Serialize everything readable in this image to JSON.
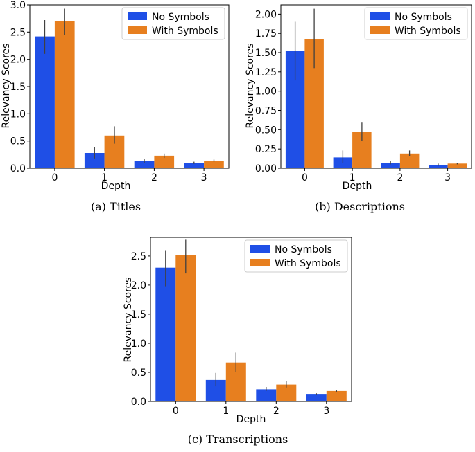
{
  "colors": {
    "no_symbols": "#1f4fe6",
    "with_symbols": "#e77f1f",
    "error": "#404040"
  },
  "chart_data": [
    {
      "type": "bar",
      "caption": "(a) Titles",
      "xlabel": "Depth",
      "ylabel": "Relevancy Scores",
      "categories": [
        "0",
        "1",
        "2",
        "3"
      ],
      "ylim": [
        0,
        3.0
      ],
      "yticks": [
        0.0,
        0.5,
        1.0,
        1.5,
        2.0,
        2.5,
        3.0
      ],
      "ytick_labels": [
        "0.0",
        "0.5",
        "1.0",
        "1.5",
        "2.0",
        "2.5",
        "3.0"
      ],
      "legend_position": "top-right",
      "series": [
        {
          "name": "No Symbols",
          "values": [
            2.42,
            0.28,
            0.13,
            0.1
          ],
          "err_low": [
            2.1,
            0.18,
            0.1,
            0.08
          ],
          "err_high": [
            2.72,
            0.39,
            0.17,
            0.12
          ]
        },
        {
          "name": "With Symbols",
          "values": [
            2.7,
            0.6,
            0.23,
            0.14
          ],
          "err_low": [
            2.45,
            0.45,
            0.19,
            0.12
          ],
          "err_high": [
            2.93,
            0.77,
            0.27,
            0.16
          ]
        }
      ]
    },
    {
      "type": "bar",
      "caption": "(b) Descriptions",
      "xlabel": "Depth",
      "ylabel": "Relevancy Scores",
      "categories": [
        "0",
        "1",
        "2",
        "3"
      ],
      "ylim": [
        0,
        2.12
      ],
      "yticks": [
        0.0,
        0.25,
        0.5,
        0.75,
        1.0,
        1.25,
        1.5,
        1.75,
        2.0
      ],
      "ytick_labels": [
        "0.00",
        "0.25",
        "0.50",
        "0.75",
        "1.00",
        "1.25",
        "1.50",
        "1.75",
        "2.00"
      ],
      "legend_position": "top-right",
      "series": [
        {
          "name": "No Symbols",
          "values": [
            1.52,
            0.14,
            0.07,
            0.045
          ],
          "err_low": [
            1.14,
            0.07,
            0.05,
            0.03
          ],
          "err_high": [
            1.9,
            0.23,
            0.09,
            0.06
          ]
        },
        {
          "name": "With Symbols",
          "values": [
            1.68,
            0.47,
            0.19,
            0.06
          ],
          "err_low": [
            1.3,
            0.35,
            0.16,
            0.05
          ],
          "err_high": [
            2.07,
            0.6,
            0.23,
            0.07
          ]
        }
      ]
    },
    {
      "type": "bar",
      "caption": "(c) Transcriptions",
      "xlabel": "Depth",
      "ylabel": "Relevancy Scores",
      "categories": [
        "0",
        "1",
        "2",
        "3"
      ],
      "ylim": [
        0,
        2.82
      ],
      "yticks": [
        0.0,
        0.5,
        1.0,
        1.5,
        2.0,
        2.5
      ],
      "ytick_labels": [
        "0.0",
        "0.5",
        "1.0",
        "1.5",
        "2.0",
        "2.5"
      ],
      "legend_position": "top-right",
      "series": [
        {
          "name": "No Symbols",
          "values": [
            2.3,
            0.37,
            0.21,
            0.13
          ],
          "err_low": [
            1.98,
            0.26,
            0.18,
            0.12
          ],
          "err_high": [
            2.6,
            0.49,
            0.25,
            0.14
          ]
        },
        {
          "name": "With Symbols",
          "values": [
            2.52,
            0.67,
            0.29,
            0.18
          ],
          "err_low": [
            2.2,
            0.5,
            0.24,
            0.16
          ],
          "err_high": [
            2.78,
            0.84,
            0.35,
            0.2
          ]
        }
      ]
    }
  ]
}
